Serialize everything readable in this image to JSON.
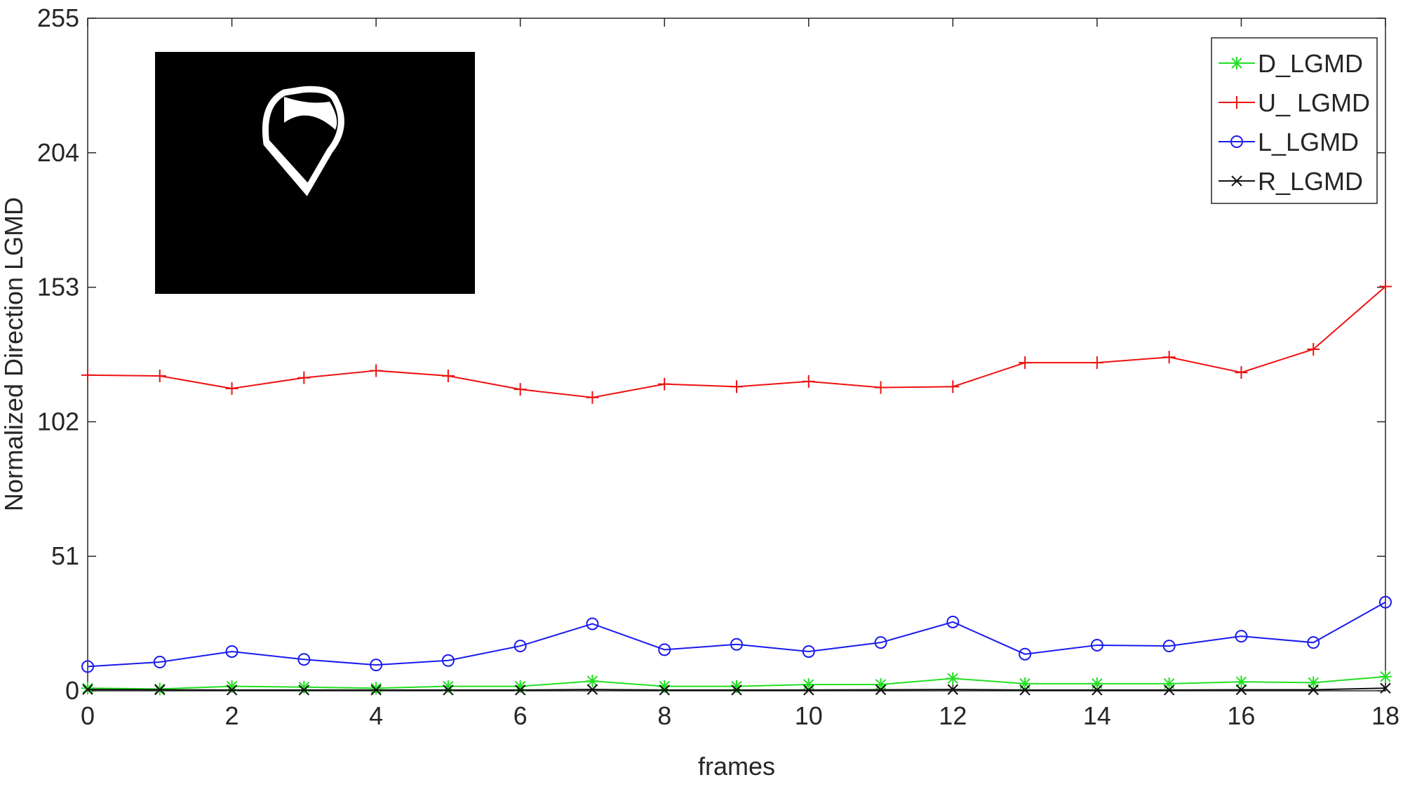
{
  "chart_data": {
    "type": "line",
    "y_label": "Normalized Direction LGMD",
    "x_label": "frames",
    "x": [
      0,
      1,
      2,
      3,
      4,
      5,
      6,
      7,
      8,
      9,
      10,
      11,
      12,
      13,
      14,
      15,
      16,
      17,
      18
    ],
    "xlim": [
      0,
      18
    ],
    "xticks": [
      0,
      2,
      4,
      6,
      8,
      10,
      12,
      14,
      16,
      18
    ],
    "ylim": [
      0,
      255
    ],
    "yticks": [
      0,
      51,
      102,
      153,
      204,
      255
    ],
    "legend": "upper right",
    "series": [
      {
        "name": "D_LGMD",
        "color": "#22e022",
        "marker": "*",
        "values": [
          1.0,
          0.7,
          1.7,
          1.4,
          1.0,
          1.7,
          1.7,
          3.7,
          1.7,
          1.7,
          2.4,
          2.4,
          4.7,
          2.7,
          2.7,
          2.7,
          3.4,
          3.1,
          5.4
        ]
      },
      {
        "name": "U_ LGMD",
        "color": "#ee1111",
        "marker": "+",
        "values": [
          119.7,
          119.4,
          114.6,
          118.7,
          121.4,
          119.4,
          114.3,
          111.2,
          116.3,
          115.3,
          117.3,
          115.0,
          115.3,
          124.4,
          124.4,
          126.5,
          120.7,
          129.5,
          153.3
        ]
      },
      {
        "name": "L_LGMD",
        "color": "#1a1aee",
        "marker": "o",
        "values": [
          9.2,
          10.9,
          14.9,
          11.9,
          9.8,
          11.5,
          17.0,
          25.4,
          15.6,
          17.6,
          14.9,
          18.3,
          26.1,
          13.9,
          17.3,
          17.0,
          20.7,
          18.3,
          33.6
        ]
      },
      {
        "name": "R_LGMD",
        "color": "#111111",
        "marker": "x",
        "values": [
          0.5,
          0.4,
          0.3,
          0.3,
          0.3,
          0.3,
          0.3,
          0.5,
          0.3,
          0.3,
          0.3,
          0.4,
          0.5,
          0.3,
          0.3,
          0.3,
          0.4,
          0.4,
          1.0
        ]
      }
    ]
  }
}
